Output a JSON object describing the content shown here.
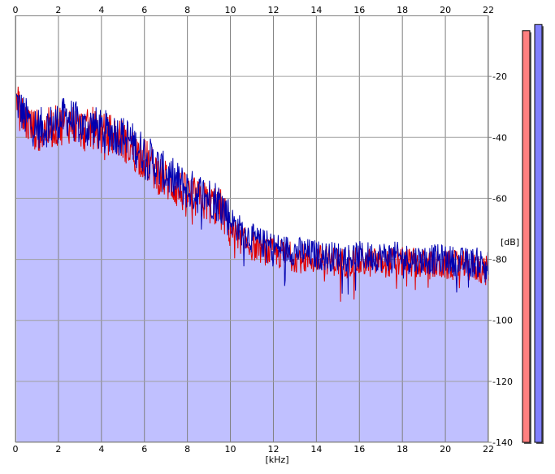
{
  "chart_data": {
    "type": "area",
    "xlabel": "[kHz]",
    "ylabel": "[dB]",
    "xlim": [
      0,
      22
    ],
    "ylim": [
      -140,
      0
    ],
    "x_ticks": [
      "0",
      "2",
      "4",
      "6",
      "8",
      "10",
      "12",
      "14",
      "16",
      "18",
      "20",
      "22"
    ],
    "y_ticks": [
      "-20",
      "-40",
      "-60",
      "-80",
      "-100",
      "-120",
      "-140"
    ],
    "grid": true,
    "series": [
      {
        "color": "#0000b0",
        "x": [
          0.05,
          0.4,
          0.8,
          1.2,
          1.6,
          2.0,
          2.4,
          2.8,
          3.2,
          3.6,
          4.0,
          4.4,
          4.8,
          5.2,
          5.6,
          6.0,
          6.4,
          6.8,
          7.2,
          7.6,
          8.0,
          8.4,
          8.8,
          9.2,
          9.6,
          10.0,
          10.4,
          10.8,
          11.2,
          11.6,
          12.0,
          12.8,
          13.6,
          14.4,
          15.2,
          16.0,
          16.8,
          17.6,
          18.4,
          19.2,
          20.0,
          20.8,
          21.6,
          22.0
        ],
        "y": [
          -28,
          -33,
          -36,
          -37,
          -36,
          -35,
          -33,
          -35,
          -37,
          -36,
          -38,
          -38,
          -39,
          -40,
          -43,
          -45,
          -48,
          -51,
          -53,
          -55,
          -57,
          -58,
          -59,
          -60,
          -62,
          -67,
          -70,
          -72,
          -74,
          -75,
          -76,
          -77,
          -78,
          -79,
          -79,
          -79,
          -79,
          -79,
          -80,
          -80,
          -80,
          -81,
          -81,
          -82
        ]
      },
      {
        "color": "#e00000",
        "x": [
          0.05,
          0.4,
          0.8,
          1.2,
          1.6,
          2.0,
          2.4,
          2.8,
          3.2,
          3.6,
          4.0,
          4.4,
          4.8,
          5.2,
          5.6,
          6.0,
          6.4,
          6.8,
          7.2,
          7.6,
          8.0,
          8.4,
          8.8,
          9.2,
          9.6,
          10.0,
          10.4,
          10.8,
          11.2,
          11.6,
          12.0,
          12.8,
          13.6,
          14.4,
          15.2,
          16.0,
          16.8,
          17.6,
          18.4,
          19.2,
          20.0,
          20.8,
          21.6,
          22.0
        ],
        "y": [
          -29,
          -34,
          -37,
          -38,
          -37,
          -36,
          -35,
          -36,
          -38,
          -37,
          -39,
          -39,
          -40,
          -42,
          -45,
          -47,
          -50,
          -53,
          -55,
          -57,
          -59,
          -60,
          -61,
          -62,
          -64,
          -70,
          -73,
          -75,
          -76,
          -77,
          -78,
          -79,
          -80,
          -80,
          -81,
          -81,
          -81,
          -81,
          -81,
          -82,
          -82,
          -82,
          -83,
          -84
        ]
      }
    ],
    "channel_meters": [
      {
        "color": "#ff8080",
        "level_db": -5
      },
      {
        "color": "#8080ff",
        "level_db": -3
      }
    ]
  }
}
